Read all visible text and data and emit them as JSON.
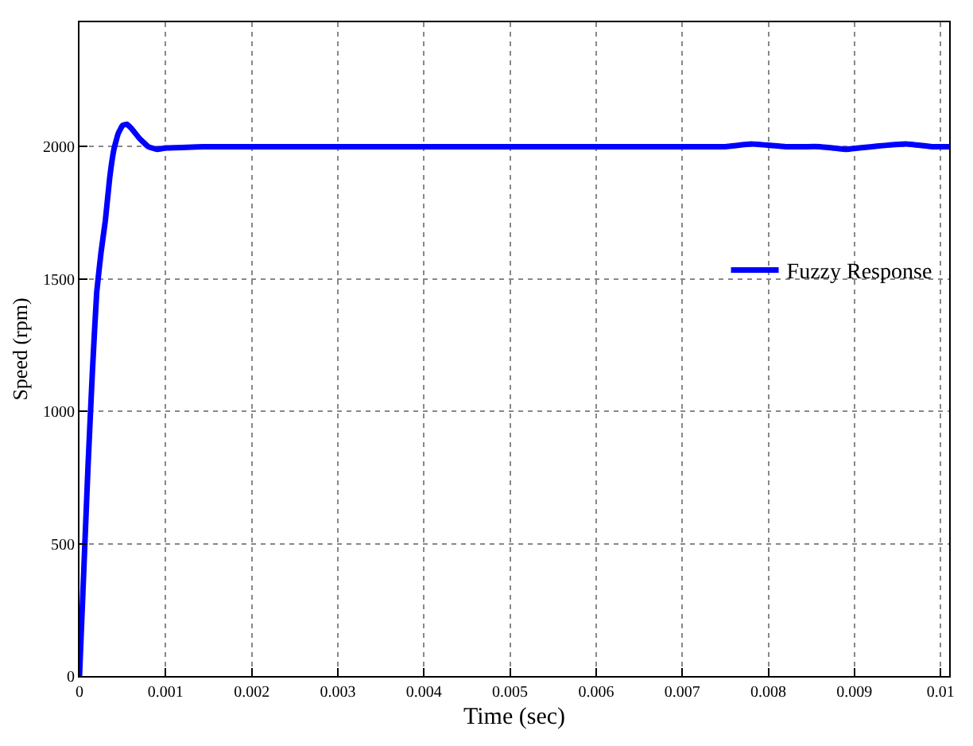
{
  "chart_data": {
    "type": "line",
    "xlabel": "Time (sec)",
    "ylabel": "Speed (rpm)",
    "series": [
      {
        "name": "Fuzzy Response",
        "color": "#0000ff",
        "x": [
          0,
          5e-05,
          0.0001,
          0.00015,
          0.0002,
          0.00025,
          0.0003,
          0.00035,
          0.0004,
          0.00045,
          0.0005,
          0.00055,
          0.0006,
          0.0007,
          0.0008,
          0.0009,
          0.001,
          0.0015,
          0.002,
          0.003,
          0.004,
          0.005,
          0.006,
          0.007,
          0.0075,
          0.0078,
          0.0082,
          0.0086,
          0.0089,
          0.0092,
          0.0096,
          0.0099,
          0.0101
        ],
        "values": [
          0,
          400,
          800,
          1150,
          1450,
          1600,
          1720,
          1880,
          1990,
          2050,
          2080,
          2085,
          2070,
          2030,
          2000,
          1990,
          1995,
          2000,
          2000,
          2000,
          2000,
          2000,
          2000,
          2000,
          2000,
          2010,
          2000,
          2000,
          1990,
          2000,
          2010,
          2000,
          2000
        ]
      }
    ],
    "xlim": [
      0,
      0.0101
    ],
    "ylim": [
      0,
      2470
    ],
    "xticks": [
      0,
      0.001,
      0.002,
      0.003,
      0.004,
      0.005,
      0.006,
      0.007,
      0.008,
      0.009,
      0.01
    ],
    "yticks": [
      0,
      500,
      1000,
      1500,
      2000
    ],
    "grid": true,
    "legend": "right",
    "line_style": "solid",
    "marker": "none"
  }
}
